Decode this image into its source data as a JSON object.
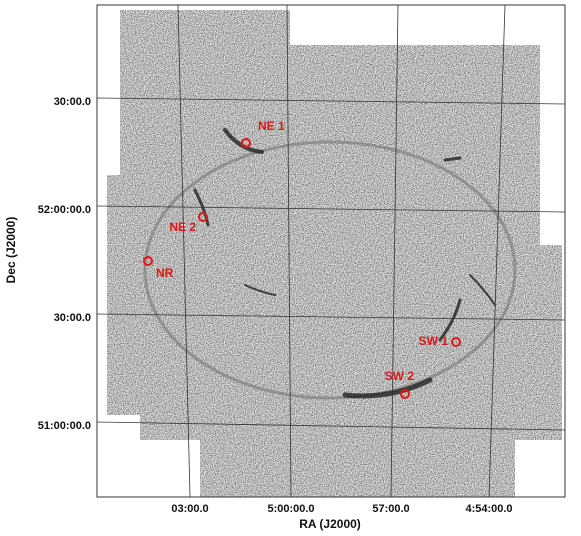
{
  "axes": {
    "x_label": "RA (J2000)",
    "y_label": "Dec (J2000)",
    "x_ticks": [
      "03:00.0",
      "5:00:00.0",
      "57:00.0",
      "4:54:00.0"
    ],
    "y_ticks": [
      "30:00.0",
      "52:00:00.0",
      "30:00.0",
      "51:00:00.0"
    ]
  },
  "regions": [
    {
      "label": "NE 1"
    },
    {
      "label": "NE 2"
    },
    {
      "label": "NR"
    },
    {
      "label": "SW 1"
    },
    {
      "label": "SW 2"
    }
  ]
}
